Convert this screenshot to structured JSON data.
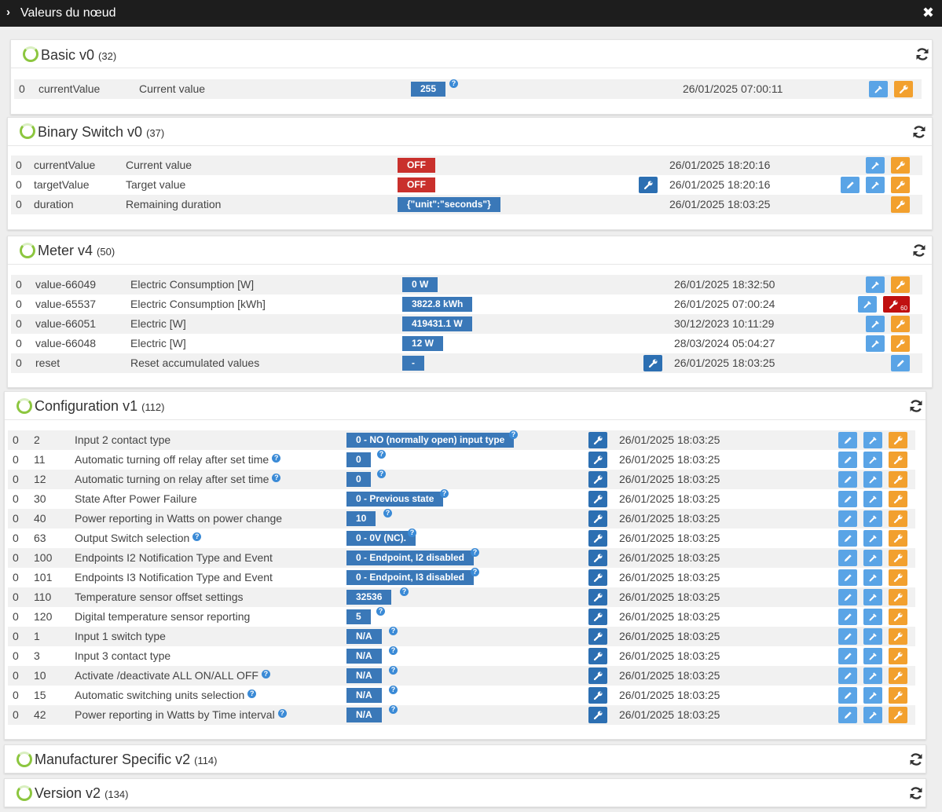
{
  "window": {
    "title": "Valeurs du nœud",
    "chevron": "›",
    "close_glyph": "✖"
  },
  "icons": {
    "ring": "loading-ring-icon",
    "refresh": "refresh-icon",
    "edit": "pencil-icon",
    "set": "pipette-icon",
    "config": "wrench-icon",
    "help": "question-icon"
  },
  "colors": {
    "value_blue": "#3a78b8",
    "off_red": "#c9302c",
    "edit_blue": "#5aa4e6",
    "wrench_orange": "#f2a02e",
    "ring_green": "#8cc63f"
  },
  "sections": {
    "basic": {
      "title": "Basic v0",
      "count": "(32)",
      "rows": [
        {
          "inst": "0",
          "name": "currentValue",
          "label": "Current value",
          "value": "255",
          "date": "26/01/2025 07:00:11"
        }
      ]
    },
    "binary": {
      "title": "Binary Switch v0",
      "count": "(37)",
      "rows": [
        {
          "inst": "0",
          "name": "currentValue",
          "label": "Current value",
          "value": "OFF",
          "date": "26/01/2025 18:20:16"
        },
        {
          "inst": "0",
          "name": "targetValue",
          "label": "Target value",
          "value": "OFF",
          "date": "26/01/2025 18:20:16"
        },
        {
          "inst": "0",
          "name": "duration",
          "label": "Remaining duration",
          "value": "{\"unit\":\"seconds\"}",
          "date": "26/01/2025 18:03:25"
        }
      ]
    },
    "meter": {
      "title": "Meter v4",
      "count": "(50)",
      "rows": [
        {
          "inst": "0",
          "name": "value-66049",
          "label": "Electric Consumption [W]",
          "value": "0 W",
          "date": "26/01/2025 18:32:50"
        },
        {
          "inst": "0",
          "name": "value-65537",
          "label": "Electric Consumption [kWh]",
          "value": "3822.8 kWh",
          "date": "26/01/2025 07:00:24",
          "badge": "60"
        },
        {
          "inst": "0",
          "name": "value-66051",
          "label": "Electric [W]",
          "value": "419431.1 W",
          "date": "30/12/2023 10:11:29"
        },
        {
          "inst": "0",
          "name": "value-66048",
          "label": "Electric [W]",
          "value": "12 W",
          "date": "28/03/2024 05:04:27"
        },
        {
          "inst": "0",
          "name": "reset",
          "label": "Reset accumulated values",
          "value": "-",
          "date": "26/01/2025 18:03:25"
        }
      ]
    },
    "config": {
      "title": "Configuration v1",
      "count": "(112)",
      "rows": [
        {
          "inst": "0",
          "id": "2",
          "label": "Input 2 contact type",
          "value": "0 - NO (normally open) input type",
          "date": "26/01/2025 18:03:25"
        },
        {
          "inst": "0",
          "id": "11",
          "label": "Automatic turning off relay after set time",
          "value": "0",
          "date": "26/01/2025 18:03:25"
        },
        {
          "inst": "0",
          "id": "12",
          "label": "Automatic turning on relay after set time",
          "value": "0",
          "date": "26/01/2025 18:03:25"
        },
        {
          "inst": "0",
          "id": "30",
          "label": "State After Power Failure",
          "value": "0 - Previous state",
          "date": "26/01/2025 18:03:25"
        },
        {
          "inst": "0",
          "id": "40",
          "label": "Power reporting in Watts on power change",
          "value": "10",
          "date": "26/01/2025 18:03:25"
        },
        {
          "inst": "0",
          "id": "63",
          "label": "Output Switch selection",
          "value": "0 - 0V (NC).",
          "date": "26/01/2025 18:03:25"
        },
        {
          "inst": "0",
          "id": "100",
          "label": "Endpoints I2 Notification Type and Event",
          "value": "0 - Endpoint, I2 disabled",
          "date": "26/01/2025 18:03:25"
        },
        {
          "inst": "0",
          "id": "101",
          "label": "Endpoints I3 Notification Type and Event",
          "value": "0 - Endpoint, I3 disabled",
          "date": "26/01/2025 18:03:25"
        },
        {
          "inst": "0",
          "id": "110",
          "label": "Temperature sensor offset settings",
          "value": "32536",
          "date": "26/01/2025 18:03:25"
        },
        {
          "inst": "0",
          "id": "120",
          "label": "Digital temperature sensor reporting",
          "value": "5",
          "date": "26/01/2025 18:03:25"
        },
        {
          "inst": "0",
          "id": "1",
          "label": "Input 1 switch type",
          "value": "N/A",
          "date": "26/01/2025 18:03:25"
        },
        {
          "inst": "0",
          "id": "3",
          "label": "Input 3 contact type",
          "value": "N/A",
          "date": "26/01/2025 18:03:25"
        },
        {
          "inst": "0",
          "id": "10",
          "label": "Activate /deactivate ALL ON/ALL OFF",
          "value": "N/A",
          "date": "26/01/2025 18:03:25"
        },
        {
          "inst": "0",
          "id": "15",
          "label": "Automatic switching units selection",
          "value": "N/A",
          "date": "26/01/2025 18:03:25"
        },
        {
          "inst": "0",
          "id": "42",
          "label": "Power reporting in Watts by Time interval",
          "value": "N/A",
          "date": "26/01/2025 18:03:25"
        }
      ]
    },
    "manufacturer": {
      "title": "Manufacturer Specific v2",
      "count": "(114)"
    },
    "version": {
      "title": "Version v2",
      "count": "(134)"
    }
  }
}
